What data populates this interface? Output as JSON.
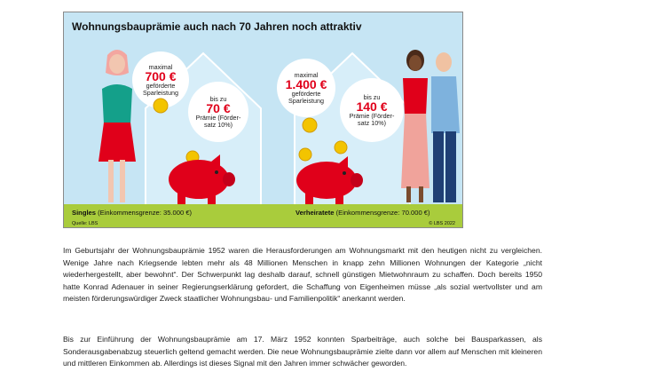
{
  "infographic": {
    "title": "Wohnungsbauprämie auch nach 70 Jahren noch attraktiv",
    "single": {
      "max_label": "maximal",
      "max_amount": "700 €",
      "max_desc_line1": "geförderte",
      "max_desc_line2": "Sparleistung",
      "bonus_label": "bis zu",
      "bonus_amount": "70 €",
      "bonus_desc_line1": "Prämie (Förder-",
      "bonus_desc_line2": "satz 10%)",
      "group_label": "Singles",
      "group_note": "(Einkommensgrenze: 35.000 €)"
    },
    "married": {
      "max_label": "maximal",
      "max_amount": "1.400 €",
      "max_desc_line1": "geförderte",
      "max_desc_line2": "Sparleistung",
      "bonus_label": "bis zu",
      "bonus_amount": "140 €",
      "bonus_desc_line1": "Prämie (Förder-",
      "bonus_desc_line2": "satz 10%)",
      "group_label": "Verheiratete",
      "group_note": "(Einkommensgrenze: 70.000 €)"
    },
    "source": "Quelle: LBS",
    "copyright": "© LBS 2022"
  },
  "article": {
    "paragraph1": "Im Geburtsjahr der Wohnungsbauprämie 1952 waren die Herausforderungen am Wohnungsmarkt mit den heutigen nicht zu vergleichen. Wenige Jahre nach Kriegsende lebten mehr als 48 Millionen Menschen in knapp zehn Millionen Wohnungen der Kategorie „nicht wiederhergestellt, aber bewohnt“. Der Schwerpunkt lag deshalb darauf, schnell günstigen Mietwohnraum zu schaffen. Doch bereits 1950 hatte Konrad Adenauer in seiner Regierungserklärung gefordert, die Schaffung von Eigenheimen müsse „als sozial wertvollster und am meisten förderungswürdiger Zweck staatlicher Wohnungsbau- und Familienpolitik“ anerkannt werden.",
    "paragraph2": "Bis zur Einführung der Wohnungsbauprämie am 17. März 1952 konnten Sparbeiträge, auch solche bei Bausparkassen, als Sonderausgabenabzug steuerlich geltend gemacht werden. Die neue Wohnungsbauprämie zielte dann vor allem auf Menschen mit kleineren und mittleren Einkommen ab. Allerdings ist dieses Signal mit den Jahren immer schwächer geworden."
  },
  "colors": {
    "sky": "#c6e5f4",
    "grass": "#a9cc3c",
    "accent_red": "#e0001a",
    "coin": "#f3c400"
  },
  "icons": [
    "woman-icon",
    "couple-icon",
    "piggy-bank-icon",
    "coin-icon",
    "house-outline-icon"
  ]
}
